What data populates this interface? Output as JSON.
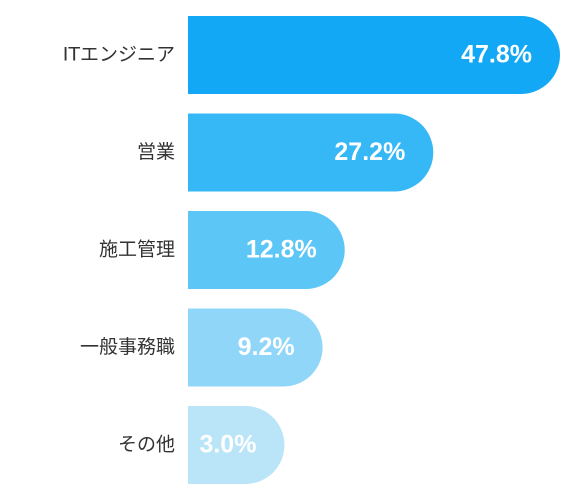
{
  "chart_data": {
    "type": "bar",
    "orientation": "horizontal",
    "categories": [
      "ITエンジニア",
      "営業",
      "施工管理",
      "一般事務職",
      "その他"
    ],
    "values": [
      47.8,
      27.2,
      12.8,
      9.2,
      3.0
    ],
    "value_labels": [
      "47.8%",
      "27.2%",
      "12.8%",
      "9.2%",
      "3.0%"
    ],
    "colors": [
      "#12a8f5",
      "#36b8f6",
      "#5cc6f7",
      "#90d6f8",
      "#bae5f8"
    ]
  }
}
